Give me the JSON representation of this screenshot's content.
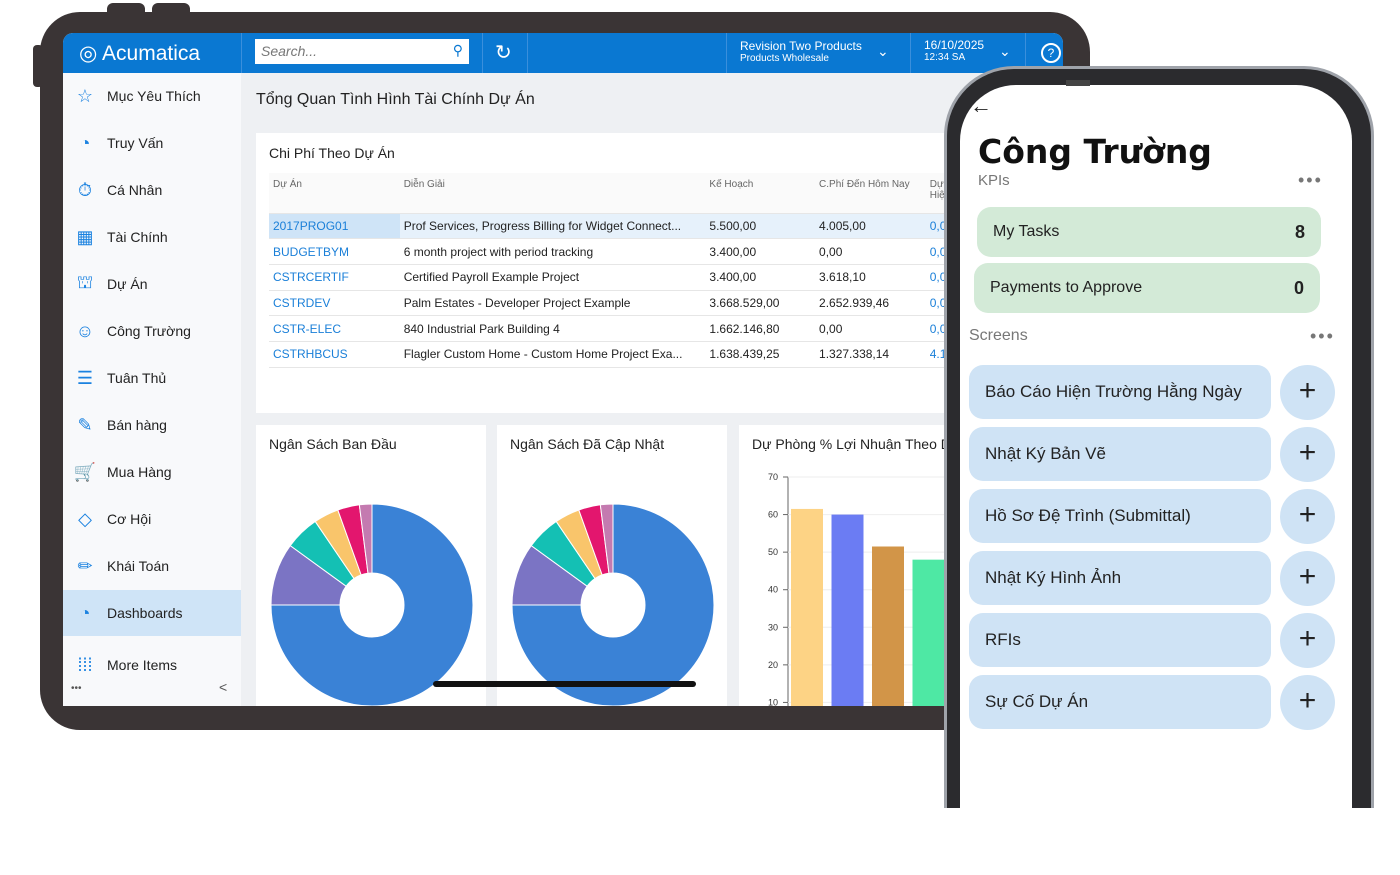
{
  "tablet": {
    "header": {
      "logo": "Acumatica",
      "search_placeholder": "Search...",
      "company": "Revision Two Products",
      "branch": "Products Wholesale",
      "date": "16/10/2025",
      "time": "12:34 SA",
      "help": "?"
    },
    "sidebar": {
      "items": [
        {
          "label": "Mục Yêu Thích",
          "icon": "☆"
        },
        {
          "label": "Truy Vấn",
          "icon": "◔"
        },
        {
          "label": "Cá Nhân",
          "icon": "⏱"
        },
        {
          "label": "Tài Chính",
          "icon": "▦"
        },
        {
          "label": "Dự Án",
          "icon": "⛫"
        },
        {
          "label": "Công Trường",
          "icon": "☺"
        },
        {
          "label": "Tuân Thủ",
          "icon": "☰"
        },
        {
          "label": "Bán hàng",
          "icon": "✎"
        },
        {
          "label": "Mua Hàng",
          "icon": "🛒"
        },
        {
          "label": "Cơ Hội",
          "icon": "◇"
        },
        {
          "label": "Khái Toán",
          "icon": "✏"
        },
        {
          "label": "Dashboards",
          "icon": "◔"
        },
        {
          "label": "More Items",
          "icon": "⁞⁞⁞"
        }
      ],
      "footer_dots": "•••",
      "collapse": "<"
    },
    "page_title": "Tổng Quan Tình Hình Tài Chính Dự Án",
    "table": {
      "title": "Chi Phí Theo Dự Án",
      "columns": [
        "Dự Án",
        "Diễn Giải",
        "Kế Hoạch",
        "C.Phí Đến Hôm Nay",
        "Dự Chi Cho Hiện"
      ],
      "rows": [
        [
          "2017PROG01",
          "Prof Services, Progress Billing for Widget Connect...",
          "5.500,00",
          "4.005,00",
          "0,00"
        ],
        [
          "BUDGETBYM",
          "6 month project with period tracking",
          "3.400,00",
          "0,00",
          "0,00"
        ],
        [
          "CSTRCERTIF",
          "Certified Payroll Example Project",
          "3.400,00",
          "3.618,10",
          "0,00"
        ],
        [
          "CSTRDEV",
          "Palm Estates - Developer Project Example",
          "3.668.529,00",
          "2.652.939,46",
          "0,00"
        ],
        [
          "CSTR-ELEC",
          "840 Industrial Park Building 4",
          "1.662.146,80",
          "0,00",
          "0,00"
        ],
        [
          "CSTRHBCUS",
          "Flagler Custom Home - Custom Home Project Exa...",
          "1.638.439,25",
          "1.327.338,14",
          "4.180,00"
        ]
      ]
    }
  },
  "chart_data": [
    {
      "type": "pie",
      "title": "Ngân Sách Ban Đầu",
      "values": [
        75,
        10,
        5.5,
        4,
        3.5,
        2
      ],
      "colors": [
        "#3a82d6",
        "#7b74c4",
        "#14c0b4",
        "#f9c56b",
        "#e3166e",
        "#c47ab0"
      ]
    },
    {
      "type": "pie",
      "title": "Ngân Sách Đã Cập Nhật",
      "values": [
        75,
        10,
        5.5,
        4,
        3.5,
        2
      ],
      "colors": [
        "#3a82d6",
        "#7b74c4",
        "#14c0b4",
        "#f9c56b",
        "#e3166e",
        "#c47ab0"
      ]
    },
    {
      "type": "bar",
      "title": "Dự Phòng % Lợi Nhuận Theo D",
      "values": [
        61.5,
        60,
        51.5,
        48
      ],
      "colors": [
        "#fdd385",
        "#6b7cf3",
        "#d29548",
        "#4ee8a4"
      ],
      "ylim": [
        0,
        70
      ],
      "yticks": [
        10,
        20,
        30,
        40,
        50,
        60,
        70
      ]
    }
  ],
  "phone": {
    "back": "←",
    "title": "Công Trường",
    "kpis_label": "KPIs",
    "more": "•••",
    "kpis": [
      {
        "label": "My Tasks",
        "value": "8"
      },
      {
        "label": "Payments to Approve",
        "value": "0"
      }
    ],
    "screens_label": "Screens",
    "screens": [
      "Báo Cáo Hiện Trường Hằng Ngày",
      "Nhật Ký Bản Vẽ",
      "Hồ Sơ Đệ Trình (Submittal)",
      "Nhật Ký Hình Ảnh",
      "RFIs",
      "Sự Cố Dự Án"
    ],
    "add": "+"
  }
}
